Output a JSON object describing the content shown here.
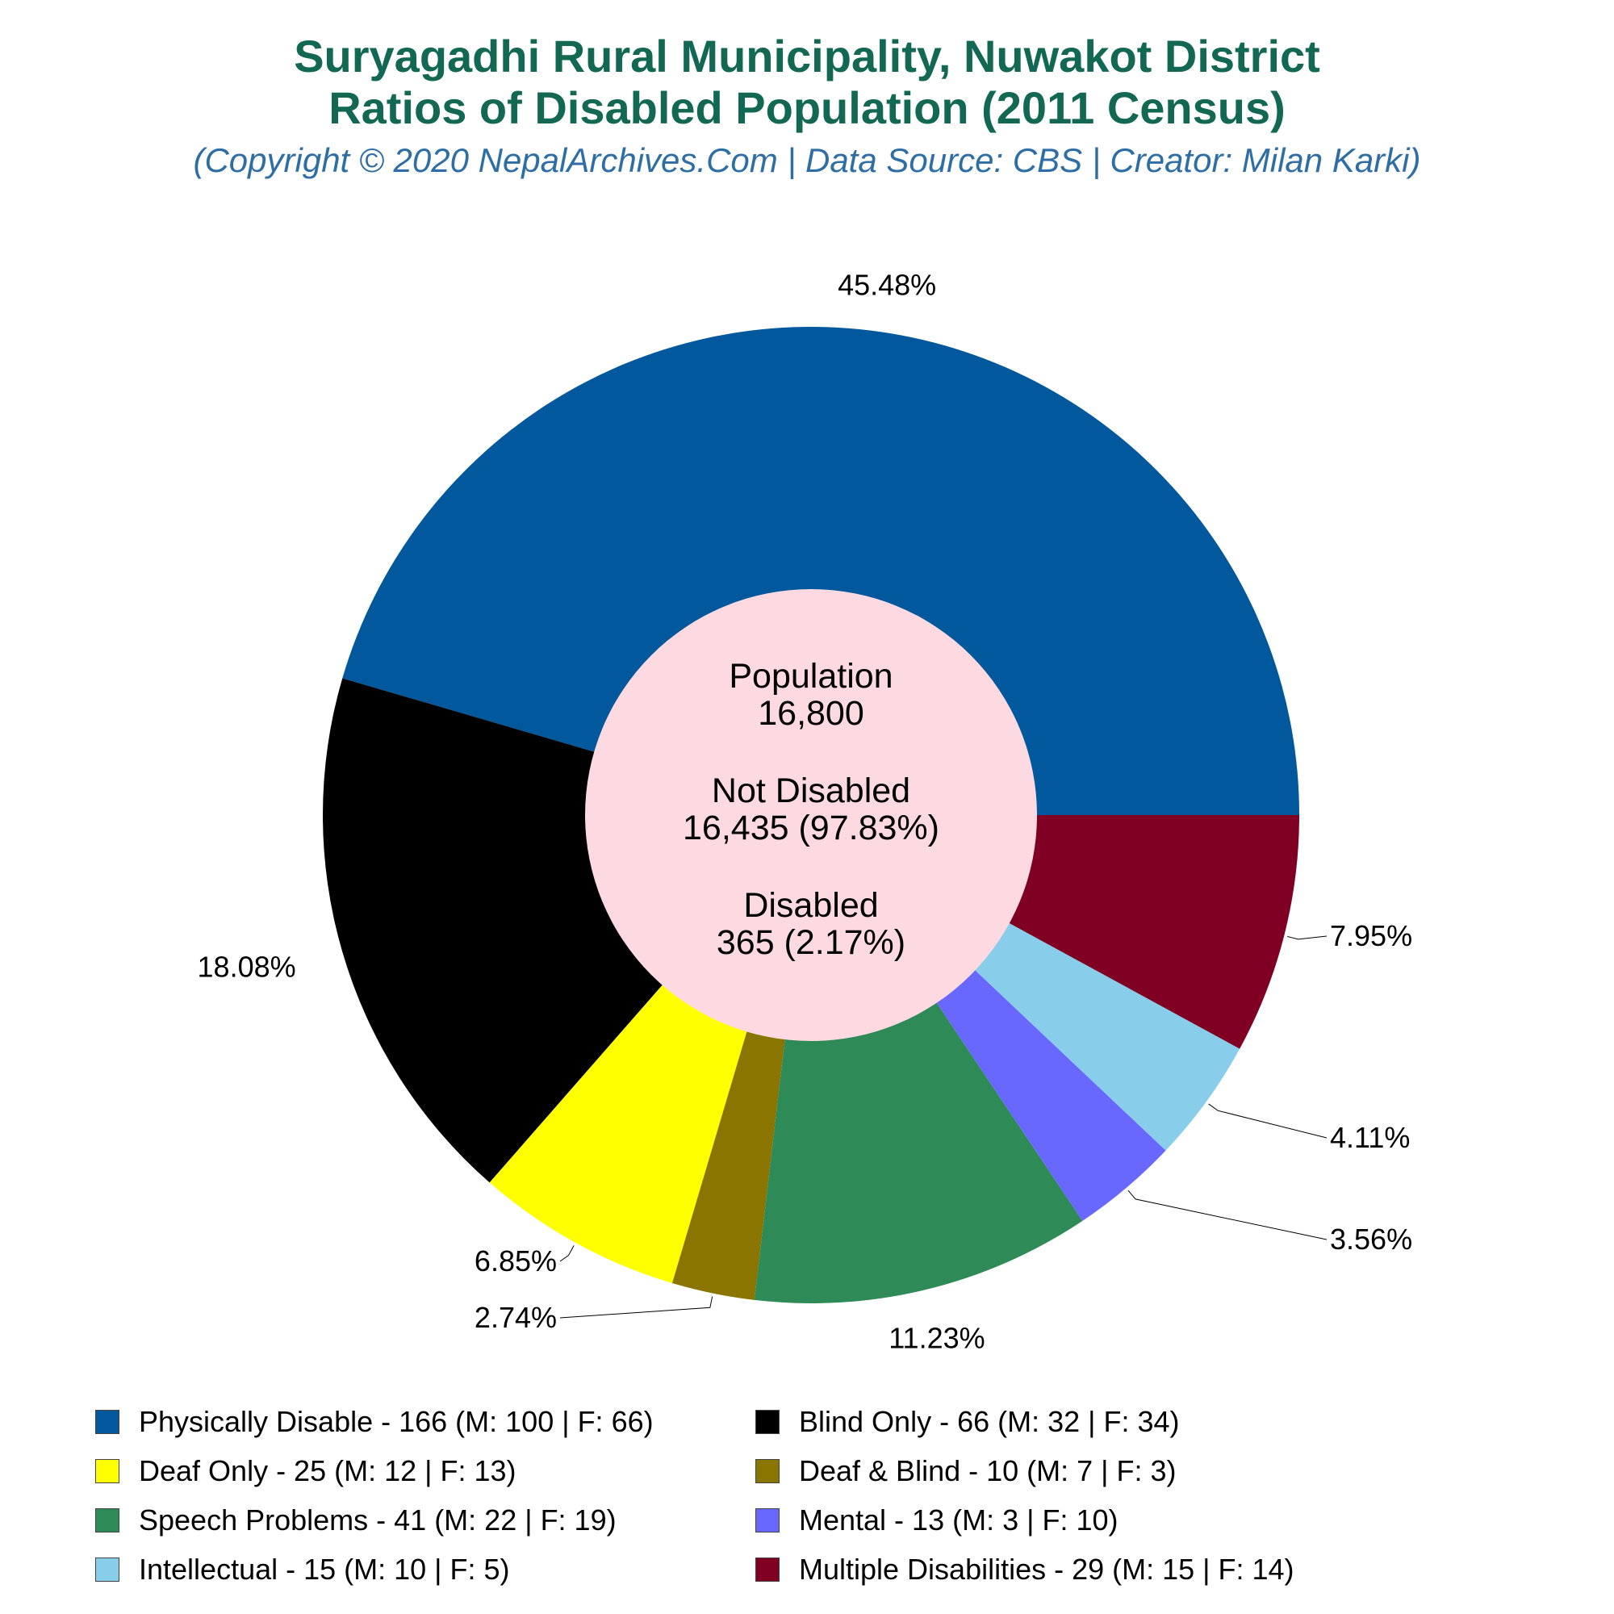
{
  "title": {
    "line1": "Suryagadhi Rural Municipality, Nuwakot District",
    "line2": "Ratios of Disabled Population (2011 Census)",
    "subtitle": "(Copyright © 2020 NepalArchives.Com | Data Source: CBS | Creator: Milan Karki)"
  },
  "center": {
    "population_label": "Population",
    "population_value": "16,800",
    "not_disabled_label": "Not Disabled",
    "not_disabled_value": "16,435 (97.83%)",
    "disabled_label": "Disabled",
    "disabled_value": "365 (2.17%)"
  },
  "chart_data": {
    "type": "pie",
    "style": "donut",
    "start": "3-o'clock, counterclockwise",
    "categories": [
      "Physically Disable",
      "Blind Only",
      "Deaf Only",
      "Deaf & Blind",
      "Speech Problems",
      "Mental",
      "Intellectual",
      "Multiple Disabilities"
    ],
    "values": [
      166,
      66,
      25,
      10,
      41,
      13,
      15,
      29
    ],
    "percent_labels": [
      "45.48%",
      "18.08%",
      "6.85%",
      "2.74%",
      "11.23%",
      "3.56%",
      "4.11%",
      "7.95%"
    ],
    "colors": [
      "#02589c",
      "#000000",
      "#ffff00",
      "#8a7500",
      "#2e8a57",
      "#6868ff",
      "#88ceeb",
      "#7f0022"
    ],
    "legend_position": "bottom",
    "legend": [
      "Physically Disable - 166 (M: 100 | F: 66)",
      "Blind Only - 66 (M: 32 | F: 34)",
      "Deaf Only - 25 (M: 12 | F: 13)",
      "Deaf & Blind - 10 (M: 7 | F: 3)",
      "Speech Problems - 41 (M: 22 | F: 19)",
      "Mental - 13 (M: 3 | F: 10)",
      "Intellectual - 15 (M: 10 | F: 5)",
      "Multiple Disabilities - 29 (M: 15 | F: 14)"
    ]
  }
}
